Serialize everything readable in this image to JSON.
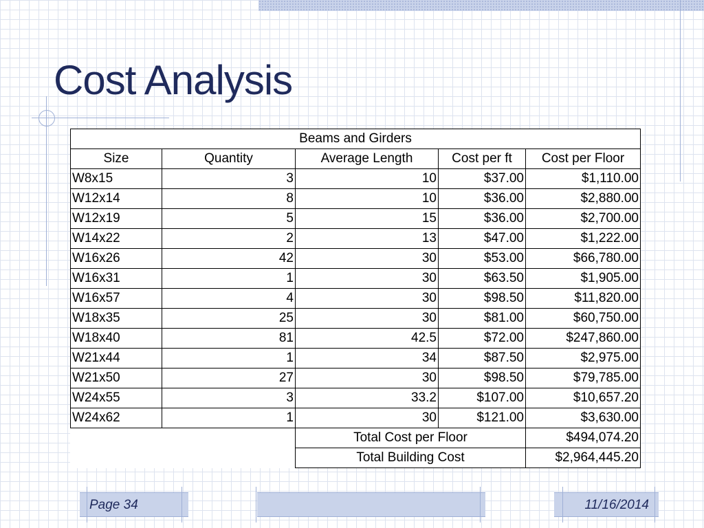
{
  "slide": {
    "title": "Cost Analysis",
    "footer": {
      "page": "Page 34",
      "date": "11/16/2014"
    }
  },
  "table": {
    "caption": "Beams and Girders",
    "headers": [
      "Size",
      "Quantity",
      "Average Length",
      "Cost per ft",
      "Cost per Floor"
    ],
    "rows": [
      [
        "W8x15",
        "3",
        "10",
        "$37.00",
        "$1,110.00"
      ],
      [
        "W12x14",
        "8",
        "10",
        "$36.00",
        "$2,880.00"
      ],
      [
        "W12x19",
        "5",
        "15",
        "$36.00",
        "$2,700.00"
      ],
      [
        "W14x22",
        "2",
        "13",
        "$47.00",
        "$1,222.00"
      ],
      [
        "W16x26",
        "42",
        "30",
        "$53.00",
        "$66,780.00"
      ],
      [
        "W16x31",
        "1",
        "30",
        "$63.50",
        "$1,905.00"
      ],
      [
        "W16x57",
        "4",
        "30",
        "$98.50",
        "$11,820.00"
      ],
      [
        "W18x35",
        "25",
        "30",
        "$81.00",
        "$60,750.00"
      ],
      [
        "W18x40",
        "81",
        "42.5",
        "$72.00",
        "$247,860.00"
      ],
      [
        "W21x44",
        "1",
        "34",
        "$87.50",
        "$2,975.00"
      ],
      [
        "W21x50",
        "27",
        "30",
        "$98.50",
        "$79,785.00"
      ],
      [
        "W24x55",
        "3",
        "33.2",
        "$107.00",
        "$10,657.20"
      ],
      [
        "W24x62",
        "1",
        "30",
        "$121.00",
        "$3,630.00"
      ]
    ],
    "totals": [
      {
        "label": "Total Cost per Floor",
        "value": "$494,074.20"
      },
      {
        "label": "Total Building Cost",
        "value": "$2,964,445.20"
      }
    ]
  },
  "colors": {
    "title": "#1f2a5c",
    "accent": "#9fb0d6",
    "band": "#c9d3ea"
  }
}
